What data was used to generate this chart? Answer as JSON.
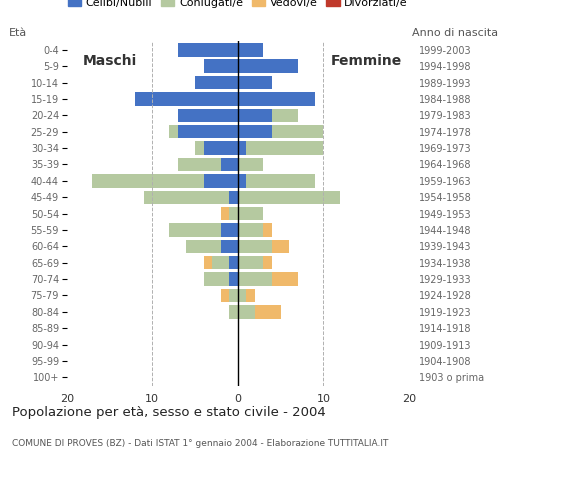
{
  "age_groups": [
    "100+",
    "95-99",
    "90-94",
    "85-89",
    "80-84",
    "75-79",
    "70-74",
    "65-69",
    "60-64",
    "55-59",
    "50-54",
    "45-49",
    "40-44",
    "35-39",
    "30-34",
    "25-29",
    "20-24",
    "15-19",
    "10-14",
    "5-9",
    "0-4"
  ],
  "birth_years": [
    "1903 o prima",
    "1904-1908",
    "1909-1913",
    "1914-1918",
    "1919-1923",
    "1924-1928",
    "1929-1933",
    "1934-1938",
    "1939-1943",
    "1944-1948",
    "1949-1953",
    "1954-1958",
    "1959-1963",
    "1964-1968",
    "1969-1973",
    "1974-1978",
    "1979-1983",
    "1984-1988",
    "1989-1993",
    "1994-1998",
    "1999-2003"
  ],
  "colors": {
    "celibe": "#4472c4",
    "coniugato": "#b5c9a0",
    "vedovo": "#f0b96a",
    "divorziato": "#c0392b"
  },
  "males": {
    "celibe": [
      0,
      0,
      0,
      0,
      0,
      0,
      1,
      1,
      2,
      2,
      0,
      1,
      4,
      2,
      4,
      7,
      7,
      12,
      5,
      4,
      7
    ],
    "coniugato": [
      0,
      0,
      0,
      0,
      1,
      1,
      3,
      2,
      4,
      6,
      1,
      10,
      13,
      5,
      1,
      1,
      0,
      0,
      0,
      0,
      0
    ],
    "vedovo": [
      0,
      0,
      0,
      0,
      0,
      1,
      0,
      1,
      0,
      0,
      1,
      0,
      0,
      0,
      0,
      0,
      0,
      0,
      0,
      0,
      0
    ],
    "divorziato": [
      0,
      0,
      0,
      0,
      0,
      0,
      0,
      0,
      0,
      0,
      0,
      0,
      0,
      0,
      0,
      0,
      0,
      0,
      0,
      0,
      0
    ]
  },
  "females": {
    "celibe": [
      0,
      0,
      0,
      0,
      0,
      0,
      0,
      0,
      0,
      0,
      0,
      0,
      1,
      0,
      1,
      4,
      4,
      9,
      4,
      7,
      3
    ],
    "coniugato": [
      0,
      0,
      0,
      0,
      2,
      1,
      4,
      3,
      4,
      3,
      3,
      12,
      8,
      3,
      9,
      6,
      3,
      0,
      0,
      0,
      0
    ],
    "vedovo": [
      0,
      0,
      0,
      0,
      3,
      1,
      3,
      1,
      2,
      1,
      0,
      0,
      0,
      0,
      0,
      0,
      0,
      0,
      0,
      0,
      0
    ],
    "divorziato": [
      0,
      0,
      0,
      0,
      0,
      0,
      0,
      0,
      0,
      0,
      0,
      0,
      0,
      0,
      0,
      0,
      0,
      0,
      0,
      0,
      0
    ]
  },
  "xlim": 20,
  "xlabel": "Popolazione per età, sesso e stato civile - 2004",
  "footer": "COMUNE DI PROVES (BZ) - Dati ISTAT 1° gennaio 2004 - Elaborazione TUTTITALIA.IT",
  "legend_labels": [
    "Celibi/Nubili",
    "Coniugati/e",
    "Vedovi/e",
    "Divorziati/e"
  ],
  "bg_color": "#ffffff",
  "bar_height": 0.82,
  "title_eta": "Età",
  "title_anno": "Anno di nascita",
  "label_maschi": "Maschi",
  "label_femmine": "Femmine"
}
